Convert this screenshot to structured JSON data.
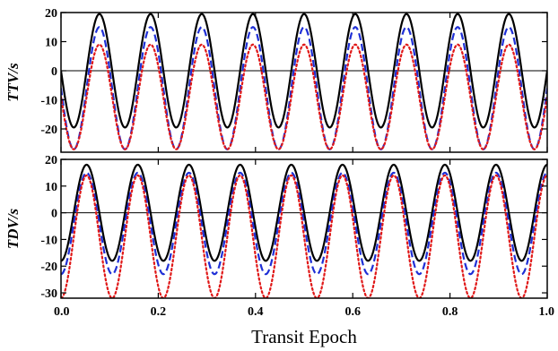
{
  "chart_data": [
    {
      "type": "line",
      "panel": "top",
      "ylabel": "TTV/s",
      "xlabel": "",
      "xlim": [
        0,
        1
      ],
      "ylim": [
        -28,
        20
      ],
      "yticks": [
        20,
        10,
        0,
        -10,
        -20
      ],
      "ytick_labels": [
        "20",
        "10",
        "0",
        "-10",
        "-20"
      ],
      "xticks": [
        0,
        0.2,
        0.4,
        0.6,
        0.8,
        1.0
      ],
      "zero_line": true,
      "cycles": 9.5,
      "phase": 0.5,
      "series": [
        {
          "style": "solid",
          "color": "#000000",
          "amplitude": 19.5,
          "offset": 0,
          "width": 2.2,
          "dash": ""
        },
        {
          "style": "dashed",
          "color": "#1f2fd6",
          "amplitude": 21,
          "offset": -6,
          "width": 2.2,
          "dash": "8,4"
        },
        {
          "style": "dotted",
          "color": "#e01818",
          "amplitude": 18,
          "offset": -9,
          "width": 2.2,
          "dash": "2,3"
        }
      ]
    },
    {
      "type": "line",
      "panel": "bottom",
      "ylabel": "TDV/s",
      "xlabel": "Transit Epoch",
      "xlim": [
        0,
        1
      ],
      "ylim": [
        -32,
        20
      ],
      "yticks": [
        20,
        10,
        0,
        -10,
        -20,
        -30
      ],
      "ytick_labels": [
        "20",
        "10",
        "0",
        "-10",
        "-20",
        "-30"
      ],
      "xticks": [
        0,
        0.2,
        0.4,
        0.6,
        0.8,
        1.0
      ],
      "xtick_labels": [
        "0.0",
        "0.2",
        "0.4",
        "0.6",
        "0.8",
        "1.0"
      ],
      "zero_line": true,
      "cycles": 9.5,
      "phase": 0.75,
      "series": [
        {
          "style": "solid",
          "color": "#000000",
          "amplitude": 18,
          "offset": 0,
          "width": 2.2,
          "dash": ""
        },
        {
          "style": "dashed",
          "color": "#1f2fd6",
          "amplitude": 19,
          "offset": -4,
          "width": 2.2,
          "dash": "8,4"
        },
        {
          "style": "dotted",
          "color": "#e01818",
          "amplitude": 23,
          "offset": -9,
          "width": 2.2,
          "dash": "2,3"
        }
      ]
    }
  ]
}
